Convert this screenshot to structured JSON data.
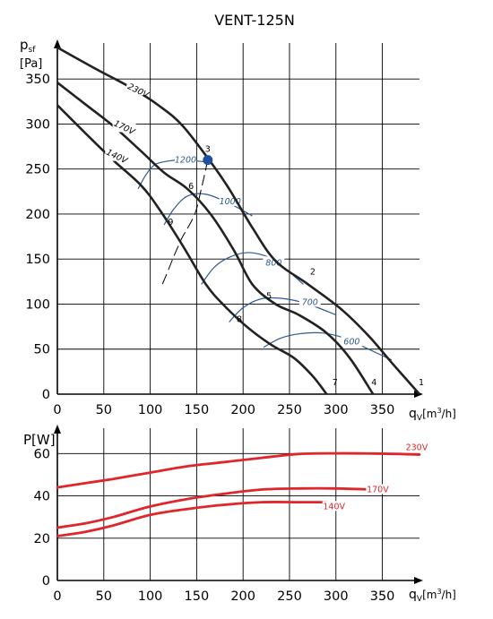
{
  "title": "VENT-125N",
  "colors": {
    "curve": "#222222",
    "rpm": "#2a5a95",
    "power": "#e0262a",
    "point": "#1f4fa0",
    "grid": "#000000"
  },
  "chart_data": [
    {
      "type": "line",
      "name": "pressure",
      "ylabel_main": "p",
      "ylabel_sub": "sf",
      "yunit": "[Pa]",
      "xlabel_main": "q",
      "xlabel_sub": "V",
      "xunit_pre": "[m",
      "xunit_sup": "3",
      "xunit_post": "/h]",
      "xlim": [
        0,
        390
      ],
      "ylim": [
        0,
        390
      ],
      "xticks": [
        0,
        50,
        100,
        150,
        200,
        250,
        300,
        350
      ],
      "yticks": [
        0,
        50,
        100,
        150,
        200,
        250,
        300,
        350
      ],
      "series": [
        {
          "name": "230V",
          "label_at": [
            87,
            337
          ],
          "points": [
            [
              0,
              385
            ],
            [
              40,
              362
            ],
            [
              80,
              340
            ],
            [
              110,
              320
            ],
            [
              135,
              298
            ],
            [
              165,
              258
            ],
            [
              185,
              228
            ],
            [
              210,
              185
            ],
            [
              235,
              148
            ],
            [
              270,
              122
            ],
            [
              305,
              95
            ],
            [
              335,
              65
            ],
            [
              360,
              35
            ],
            [
              390,
              0
            ]
          ]
        },
        {
          "name": "170V",
          "label_at": [
            72,
            296
          ],
          "points": [
            [
              0,
              346
            ],
            [
              30,
              322
            ],
            [
              60,
              298
            ],
            [
              90,
              270
            ],
            [
              115,
              246
            ],
            [
              140,
              228
            ],
            [
              165,
              200
            ],
            [
              190,
              160
            ],
            [
              210,
              122
            ],
            [
              235,
              100
            ],
            [
              260,
              88
            ],
            [
              290,
              68
            ],
            [
              315,
              40
            ],
            [
              340,
              0
            ]
          ]
        },
        {
          "name": "140V",
          "label_at": [
            64,
            264
          ],
          "points": [
            [
              0,
              321
            ],
            [
              30,
              290
            ],
            [
              60,
              260
            ],
            [
              90,
              232
            ],
            [
              110,
              205
            ],
            [
              135,
              165
            ],
            [
              160,
              122
            ],
            [
              180,
              98
            ],
            [
              205,
              74
            ],
            [
              230,
              55
            ],
            [
              255,
              40
            ],
            [
              275,
              20
            ],
            [
              290,
              0
            ]
          ]
        }
      ],
      "rpm_curves": [
        {
          "label": "1200",
          "label_at": [
            138,
            260
          ],
          "points": [
            [
              87,
              228
            ],
            [
              95,
              243
            ],
            [
              105,
              255
            ],
            [
              120,
              259
            ],
            [
              135,
              260
            ],
            [
              160,
              258
            ]
          ]
        },
        {
          "label": "1000",
          "label_at": [
            186,
            214
          ],
          "points": [
            [
              115,
              188
            ],
            [
              125,
              205
            ],
            [
              140,
              220
            ],
            [
              160,
              222
            ],
            [
              185,
              212
            ],
            [
              210,
              198
            ]
          ]
        },
        {
          "label": "800",
          "label_at": [
            233,
            146
          ],
          "points": [
            [
              155,
              122
            ],
            [
              170,
              142
            ],
            [
              190,
              154
            ],
            [
              210,
              157
            ],
            [
              235,
              148
            ],
            [
              265,
              122
            ]
          ]
        },
        {
          "label": "700",
          "label_at": [
            272,
            102
          ],
          "points": [
            [
              185,
              80
            ],
            [
              200,
              96
            ],
            [
              220,
              106
            ],
            [
              245,
              106
            ],
            [
              270,
              100
            ],
            [
              300,
              88
            ]
          ]
        },
        {
          "label": "600",
          "label_at": [
            317,
            58
          ],
          "points": [
            [
              222,
              52
            ],
            [
              240,
              62
            ],
            [
              260,
              67
            ],
            [
              285,
              68
            ],
            [
              310,
              62
            ],
            [
              335,
              50
            ],
            [
              360,
              38
            ]
          ]
        }
      ],
      "system_line": {
        "points": [
          [
            162,
            260
          ],
          [
            155,
            228
          ],
          [
            148,
            200
          ],
          [
            135,
            175
          ],
          [
            130,
            164
          ],
          [
            125,
            152
          ],
          [
            118,
            134
          ],
          [
            113,
            122
          ]
        ]
      },
      "operating_point": {
        "label": "3",
        "x": 162,
        "y": 260
      },
      "point_labels": [
        {
          "label": "1",
          "x": 392,
          "y": 10
        },
        {
          "label": "2",
          "x": 275,
          "y": 133
        },
        {
          "label": "4",
          "x": 341,
          "y": 10
        },
        {
          "label": "5",
          "x": 228,
          "y": 106
        },
        {
          "label": "6",
          "x": 144,
          "y": 228
        },
        {
          "label": "7",
          "x": 299,
          "y": 10
        },
        {
          "label": "8",
          "x": 196,
          "y": 80
        },
        {
          "label": "9",
          "x": 122,
          "y": 188
        }
      ]
    },
    {
      "type": "line",
      "name": "power",
      "ylabel": "P[W]",
      "xlabel_main": "q",
      "xlabel_sub": "V",
      "xunit_pre": "[m",
      "xunit_sup": "3",
      "xunit_post": "/h]",
      "xlim": [
        0,
        390
      ],
      "ylim": [
        0,
        72
      ],
      "xticks": [
        0,
        50,
        100,
        150,
        200,
        250,
        300,
        350
      ],
      "yticks": [
        0,
        20,
        40,
        60
      ],
      "series": [
        {
          "name": "230V",
          "label_at": [
            387,
            63
          ],
          "points": [
            [
              0,
              44
            ],
            [
              30,
              46
            ],
            [
              60,
              48
            ],
            [
              100,
              51
            ],
            [
              140,
              54
            ],
            [
              180,
              56
            ],
            [
              220,
              58
            ],
            [
              260,
              59.8
            ],
            [
              300,
              60.1
            ],
            [
              340,
              60
            ],
            [
              370,
              59.8
            ],
            [
              390,
              59.5
            ]
          ]
        },
        {
          "name": "170V",
          "label_at": [
            345,
            43
          ],
          "points": [
            [
              0,
              25
            ],
            [
              30,
              27
            ],
            [
              60,
              30
            ],
            [
              100,
              35
            ],
            [
              140,
              38.5
            ],
            [
              180,
              41
            ],
            [
              220,
              43
            ],
            [
              260,
              43.5
            ],
            [
              300,
              43.5
            ],
            [
              340,
              43
            ]
          ]
        },
        {
          "name": "140V",
          "label_at": [
            298,
            35
          ],
          "points": [
            [
              0,
              21
            ],
            [
              30,
              23
            ],
            [
              60,
              26
            ],
            [
              100,
              31
            ],
            [
              140,
              33.8
            ],
            [
              180,
              35.8
            ],
            [
              220,
              37
            ],
            [
              260,
              37
            ],
            [
              290,
              37
            ]
          ]
        }
      ]
    }
  ]
}
